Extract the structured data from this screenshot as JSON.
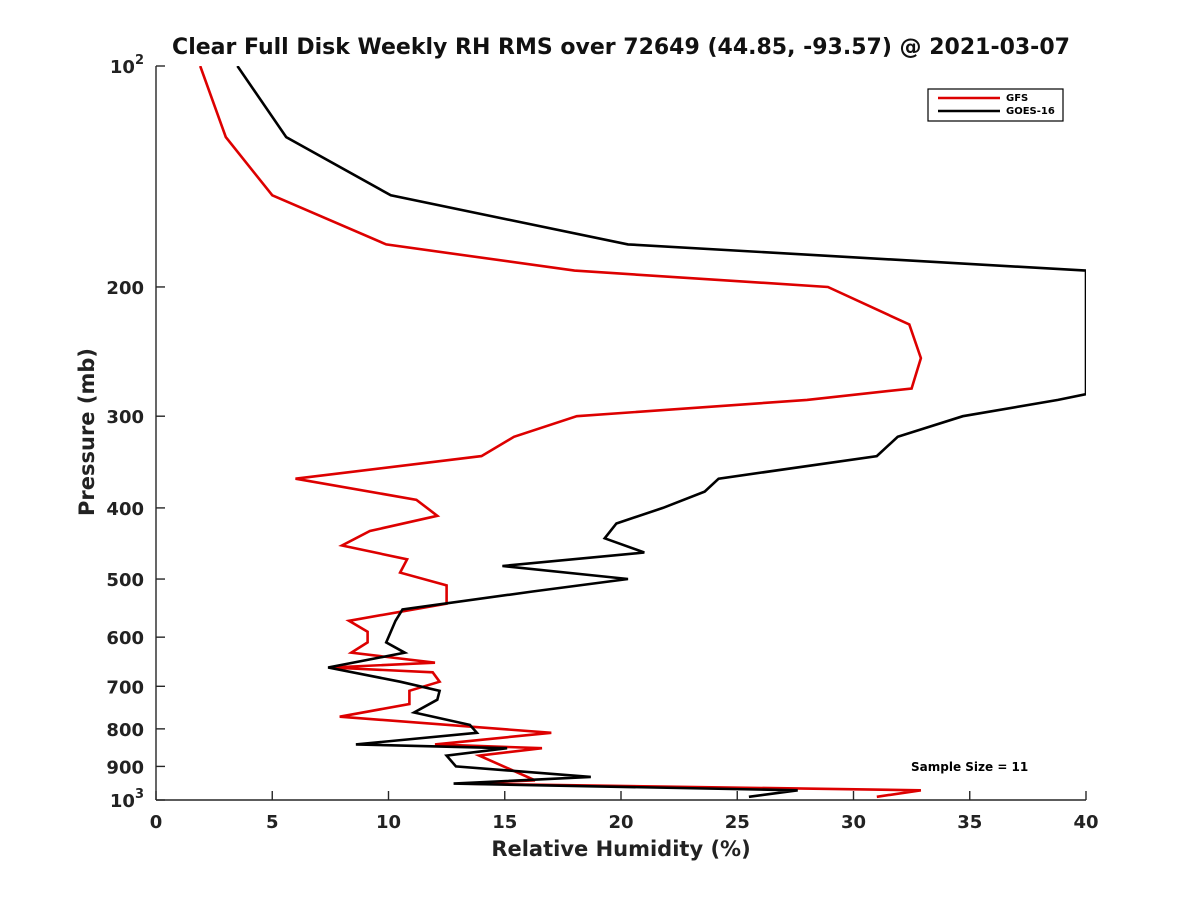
{
  "chart_data": {
    "type": "line",
    "title": "Clear Full Disk Weekly RH RMS over 72649 (44.85, -93.57) @ 2021-03-07",
    "xlabel": "Relative Humidity (%)",
    "ylabel": "Pressure (mb)",
    "xlim": [
      0,
      40
    ],
    "ylim": [
      100,
      1000
    ],
    "y_scale": "log",
    "y_reversed": true,
    "grid": false,
    "legend_position": "top-right",
    "x_ticks": [
      "0",
      "5",
      "10",
      "15",
      "20",
      "25",
      "30",
      "35",
      "40"
    ],
    "y_ticks": [
      {
        "value": 100,
        "base": "10",
        "exp": "2"
      },
      {
        "value": 200,
        "label": "200"
      },
      {
        "value": 300,
        "label": "300"
      },
      {
        "value": 400,
        "label": "400"
      },
      {
        "value": 500,
        "label": "500"
      },
      {
        "value": 600,
        "label": "600"
      },
      {
        "value": 700,
        "label": "700"
      },
      {
        "value": 800,
        "label": "800"
      },
      {
        "value": 900,
        "label": "900"
      },
      {
        "value": 1000,
        "base": "10",
        "exp": "3"
      }
    ],
    "annotation": "Sample Size = 11",
    "series": [
      {
        "name": "GFS",
        "color": "#dd0000",
        "points": [
          [
            1.9,
            100
          ],
          [
            3.0,
            125
          ],
          [
            5.0,
            150
          ],
          [
            9.9,
            175
          ],
          [
            18.0,
            190
          ],
          [
            28.9,
            200
          ],
          [
            32.4,
            225
          ],
          [
            32.9,
            250
          ],
          [
            32.5,
            275
          ],
          [
            28.0,
            285
          ],
          [
            18.1,
            300
          ],
          [
            15.4,
            320
          ],
          [
            14.0,
            340
          ],
          [
            6.0,
            365
          ],
          [
            11.2,
            390
          ],
          [
            12.1,
            410
          ],
          [
            9.2,
            430
          ],
          [
            8.0,
            450
          ],
          [
            10.8,
            470
          ],
          [
            10.5,
            490
          ],
          [
            12.5,
            510
          ],
          [
            12.5,
            540
          ],
          [
            8.3,
            570
          ],
          [
            9.1,
            590
          ],
          [
            9.1,
            610
          ],
          [
            8.4,
            630
          ],
          [
            12.0,
            650
          ],
          [
            7.5,
            660
          ],
          [
            11.9,
            670
          ],
          [
            12.2,
            690
          ],
          [
            10.9,
            710
          ],
          [
            10.9,
            740
          ],
          [
            7.9,
            770
          ],
          [
            17.0,
            810
          ],
          [
            12.0,
            840
          ],
          [
            16.6,
            850
          ],
          [
            13.9,
            870
          ],
          [
            16.3,
            940
          ],
          [
            13.1,
            950
          ],
          [
            32.9,
            970
          ],
          [
            31.0,
            990
          ]
        ]
      },
      {
        "name": "GOES-16",
        "color": "#000000",
        "points": [
          [
            3.5,
            100
          ],
          [
            5.6,
            125
          ],
          [
            10.1,
            150
          ],
          [
            20.3,
            175
          ],
          [
            40.0,
            190
          ],
          [
            40.0,
            280
          ],
          [
            38.8,
            285
          ],
          [
            34.7,
            300
          ],
          [
            31.9,
            320
          ],
          [
            31.0,
            340
          ],
          [
            24.2,
            365
          ],
          [
            23.6,
            380
          ],
          [
            21.8,
            400
          ],
          [
            19.8,
            420
          ],
          [
            19.3,
            440
          ],
          [
            21.0,
            460
          ],
          [
            14.9,
            480
          ],
          [
            20.3,
            500
          ],
          [
            16.2,
            520
          ],
          [
            10.6,
            550
          ],
          [
            10.3,
            570
          ],
          [
            10.1,
            590
          ],
          [
            9.9,
            610
          ],
          [
            10.7,
            630
          ],
          [
            7.4,
            660
          ],
          [
            10.5,
            690
          ],
          [
            12.2,
            710
          ],
          [
            12.1,
            730
          ],
          [
            11.1,
            760
          ],
          [
            13.5,
            790
          ],
          [
            13.8,
            810
          ],
          [
            8.6,
            840
          ],
          [
            15.1,
            850
          ],
          [
            12.5,
            870
          ],
          [
            12.9,
            900
          ],
          [
            18.7,
            930
          ],
          [
            12.8,
            950
          ],
          [
            27.6,
            970
          ],
          [
            25.5,
            990
          ]
        ]
      }
    ]
  }
}
